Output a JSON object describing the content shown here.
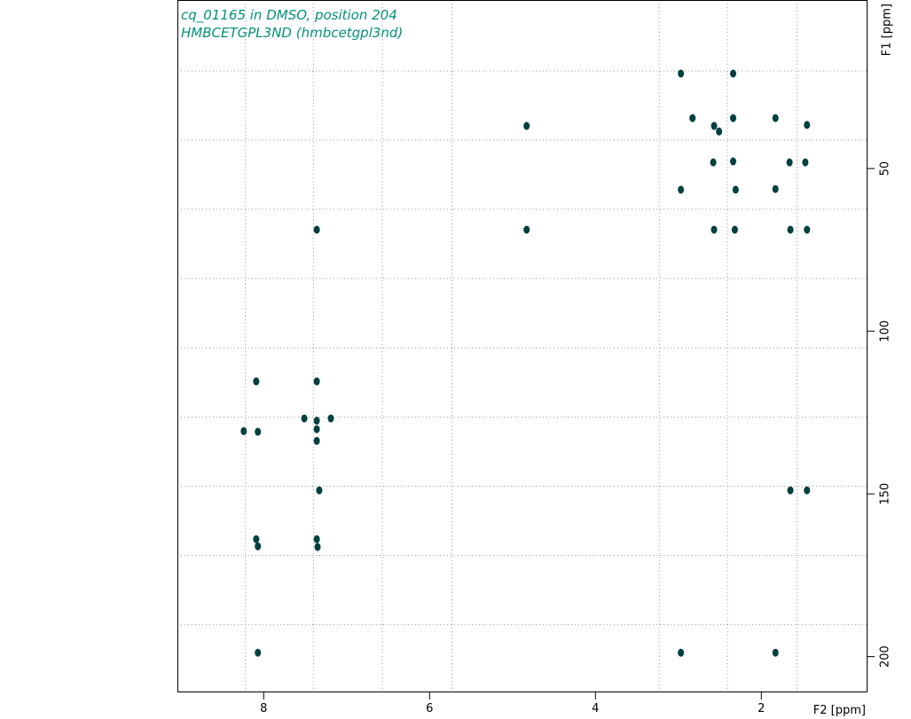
{
  "chart_data": {
    "type": "scatter",
    "title": "cq_01165 in DMSO, position 204",
    "subtitle": "HMBCETGPL3ND (hmbcetgpl3nd)",
    "x_label": "F2 [ppm]",
    "y_label": "F1 [ppm]",
    "xlim": [
      9.04,
      0.72
    ],
    "ylim": [
      -1.8,
      211
    ],
    "xticks": [
      8,
      6,
      4,
      2
    ],
    "yticks": [
      50,
      100,
      150,
      200
    ],
    "grid_x": [
      8.22,
      7.4,
      6.57,
      5.73,
      3.23,
      2.41,
      1.57
    ],
    "grid_y": [
      20,
      41.3,
      62.5,
      83.8,
      105.1,
      126.4,
      147.6,
      168.9,
      190.2
    ],
    "color": "#00403f",
    "x": [
      2.97,
      2.34,
      4.83,
      2.34,
      1.83,
      2.57,
      2.51,
      2.83,
      1.45,
      2.58,
      2.34,
      1.66,
      1.47,
      2.97,
      2.31,
      1.83,
      7.36,
      4.83,
      2.57,
      2.32,
      1.65,
      1.45,
      8.09,
      7.36,
      7.51,
      7.36,
      7.19,
      8.24,
      8.07,
      7.36,
      7.36,
      7.33,
      1.65,
      1.45,
      8.09,
      8.07,
      7.36,
      7.35,
      8.07,
      2.97,
      1.83
    ],
    "values": [
      20.8,
      20.8,
      36.9,
      34.5,
      34.5,
      36.9,
      38.6,
      34.5,
      36.6,
      48.1,
      47.8,
      48.1,
      48.1,
      56.5,
      56.5,
      56.3,
      68.8,
      68.8,
      68.8,
      68.8,
      68.8,
      68.8,
      115.4,
      115.4,
      126.8,
      130.1,
      126.8,
      130.7,
      130.9,
      127.5,
      133.7,
      148.9,
      148.9,
      148.9,
      163.9,
      166.1,
      163.9,
      166.3,
      198.8,
      198.8,
      198.8
    ]
  }
}
